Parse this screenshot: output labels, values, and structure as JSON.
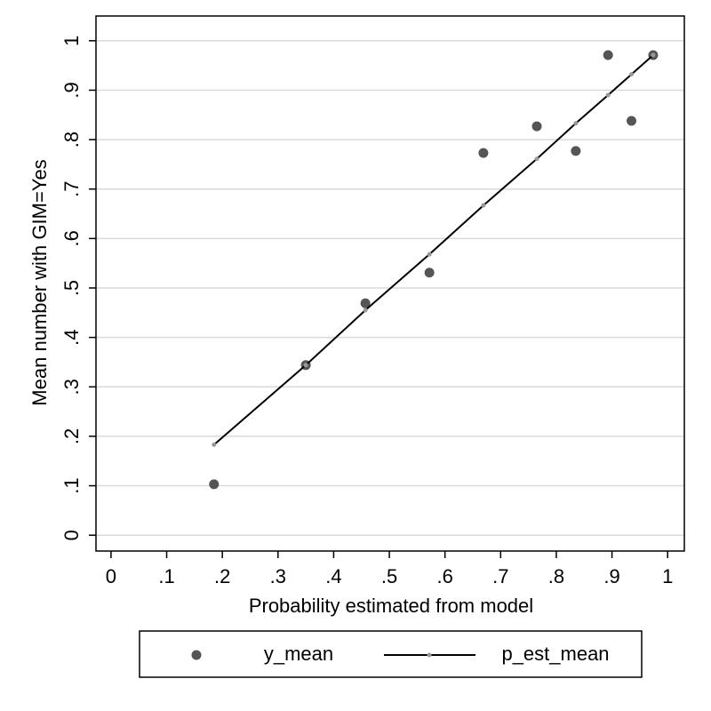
{
  "chart_data": {
    "type": "scatter",
    "x_label": "Probability estimated from model",
    "y_label": "Mean number with GIM=Yes",
    "x": [
      0.185,
      0.35,
      0.457,
      0.572,
      0.669,
      0.765,
      0.835,
      0.893,
      0.935,
      0.974
    ],
    "series": [
      {
        "name": "y_mean",
        "style": "markers",
        "color": "#555555",
        "values": [
          0.103,
          0.344,
          0.469,
          0.531,
          0.773,
          0.827,
          0.777,
          0.971,
          0.838,
          0.971
        ]
      },
      {
        "name": "p_est_mean",
        "style": "line",
        "color": "#000000",
        "marker_color": "#999999",
        "values": [
          0.183,
          0.344,
          0.455,
          0.568,
          0.667,
          0.761,
          0.833,
          0.89,
          0.932,
          0.971
        ]
      }
    ],
    "xlim": [
      -0.027,
      1.03
    ],
    "ylim": [
      -0.032,
      1.05
    ],
    "xticks": [
      0,
      {
        "value": 0.1,
        "label": ".1"
      },
      {
        "value": 0.2,
        "label": ".2"
      },
      {
        "value": 0.3,
        "label": ".3"
      },
      {
        "value": 0.4,
        "label": ".4"
      },
      {
        "value": 0.5,
        "label": ".5"
      },
      {
        "value": 0.6,
        "label": ".6"
      },
      {
        "value": 0.7,
        "label": ".7"
      },
      {
        "value": 0.8,
        "label": ".8"
      },
      {
        "value": 0.9,
        "label": ".9"
      },
      1
    ],
    "yticks": [
      0,
      {
        "value": 0.1,
        "label": ".1"
      },
      {
        "value": 0.2,
        "label": ".2"
      },
      {
        "value": 0.3,
        "label": ".3"
      },
      {
        "value": 0.4,
        "label": ".4"
      },
      {
        "value": 0.5,
        "label": ".5"
      },
      {
        "value": 0.6,
        "label": ".6"
      },
      {
        "value": 0.7,
        "label": ".7"
      },
      {
        "value": 0.8,
        "label": ".8"
      },
      {
        "value": 0.9,
        "label": ".9"
      },
      1
    ],
    "grid": true
  }
}
